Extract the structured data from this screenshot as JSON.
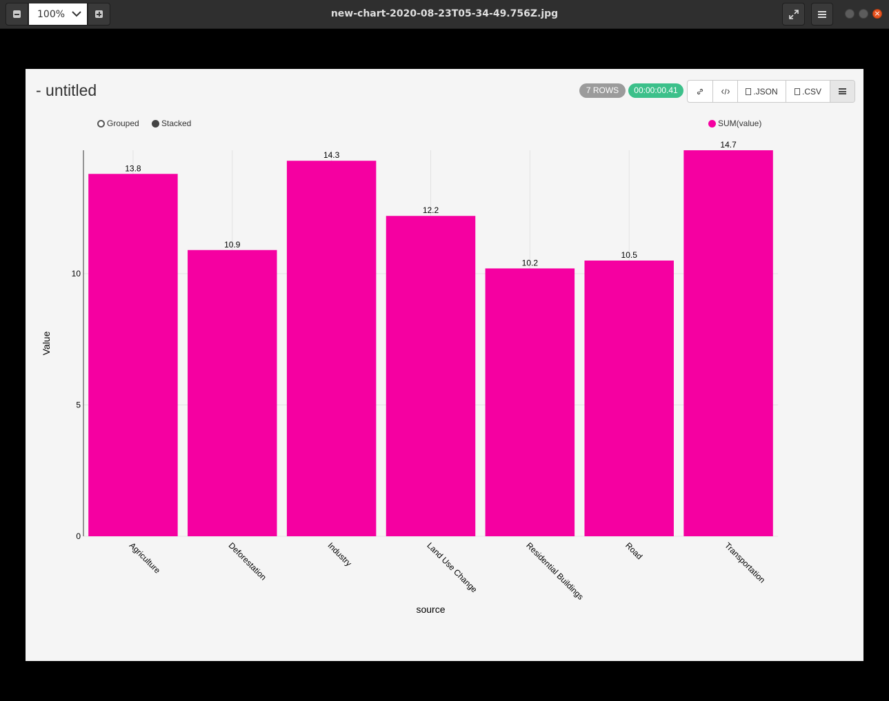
{
  "window": {
    "title": "new-chart-2020-08-23T05-34-49.756Z.jpg",
    "zoom": "100%"
  },
  "page": {
    "title": "- untitled",
    "rows_badge": "7 ROWS",
    "time_badge": "00:00:00.41",
    "json_label": ".JSON",
    "csv_label": ".CSV"
  },
  "controls": {
    "grouped_label": "Grouped",
    "stacked_label": "Stacked",
    "selected": "Stacked"
  },
  "colors": {
    "bar": "#f500a1"
  },
  "chart_data": {
    "type": "bar",
    "categories": [
      "Agriculture",
      "Deforestation",
      "Industry",
      "Land Use Change",
      "Residential Buildings",
      "Road",
      "Transportation"
    ],
    "series": [
      {
        "name": "SUM(value)",
        "values": [
          13.8,
          10.9,
          14.3,
          12.2,
          10.2,
          10.5,
          14.7
        ]
      }
    ],
    "data_labels": [
      "13.8",
      "10.9",
      "14.3",
      "12.2",
      "10.2",
      "10.5",
      "14.7"
    ],
    "xlabel": "source",
    "ylabel": "Value",
    "ylim": [
      0,
      14.7
    ],
    "yticks": [
      0,
      5,
      10
    ],
    "ytick_labels": [
      "0",
      "5",
      "10"
    ],
    "grid": true,
    "legend": "top-right"
  }
}
